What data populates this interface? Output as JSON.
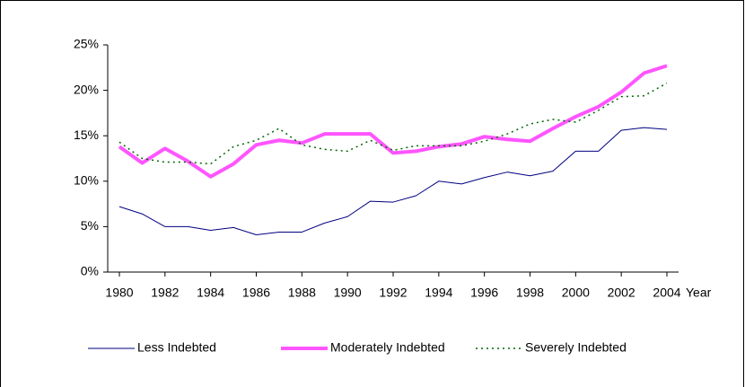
{
  "chart_data": {
    "type": "line",
    "x": [
      1980,
      1981,
      1982,
      1983,
      1984,
      1985,
      1986,
      1987,
      1988,
      1989,
      1990,
      1991,
      1992,
      1993,
      1994,
      1995,
      1996,
      1997,
      1998,
      1999,
      2000,
      2001,
      2002,
      2003,
      2004
    ],
    "xlim": [
      1980,
      2004
    ],
    "xticks": [
      1980,
      1982,
      1984,
      1986,
      1988,
      1990,
      1992,
      1994,
      1996,
      1998,
      2000,
      2002,
      2004
    ],
    "x_label": "Year",
    "ylim": [
      0,
      25
    ],
    "yticks": [
      {
        "value": 0,
        "label": "0%"
      },
      {
        "value": 5,
        "label": "5%"
      },
      {
        "value": 10,
        "label": "10%"
      },
      {
        "value": 15,
        "label": "15%"
      },
      {
        "value": 20,
        "label": "20%"
      },
      {
        "value": 25,
        "label": "25%"
      }
    ],
    "grid": false,
    "legend": "bottom",
    "series": [
      {
        "name": "Less Indebted",
        "color": "#000080",
        "style": "solid",
        "width": 1,
        "values": [
          7.2,
          6.4,
          5.0,
          5.0,
          4.6,
          4.9,
          4.1,
          4.4,
          4.4,
          5.4,
          6.1,
          7.8,
          7.7,
          8.4,
          10.0,
          9.7,
          10.4,
          11.0,
          10.6,
          11.1,
          13.3,
          13.3,
          15.6,
          15.9,
          15.7
        ]
      },
      {
        "name": "Moderately Indebted",
        "color": "#ff55ff",
        "style": "solid",
        "width": 4,
        "values": [
          13.8,
          12.0,
          13.6,
          12.2,
          10.5,
          11.9,
          14.0,
          14.5,
          14.2,
          15.2,
          15.2,
          15.2,
          13.1,
          13.3,
          13.8,
          14.1,
          14.9,
          14.6,
          14.4,
          15.8,
          17.1,
          18.2,
          19.8,
          21.9,
          22.7
        ]
      },
      {
        "name": "Severely Indebted",
        "color": "#006600",
        "style": "dotted",
        "width": 1.5,
        "values": [
          14.3,
          12.5,
          12.1,
          12.1,
          11.9,
          13.8,
          14.5,
          15.8,
          14.0,
          13.5,
          13.3,
          14.5,
          13.4,
          13.9,
          13.9,
          13.9,
          14.4,
          15.2,
          16.3,
          16.8,
          16.5,
          17.8,
          19.3,
          19.4,
          20.8
        ]
      }
    ]
  }
}
